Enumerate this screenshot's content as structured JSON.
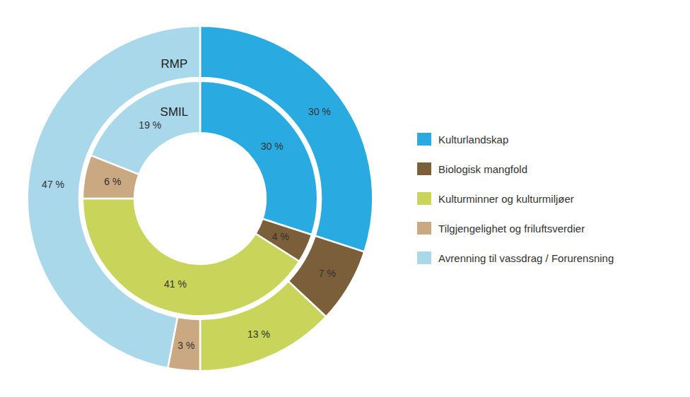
{
  "chart_data": {
    "type": "donut",
    "categories": [
      "Kulturlandskap",
      "Biologisk mangfold",
      "Kulturminner og kulturmiljøer",
      "Tilgjengelighet og friluftsverdier",
      "Avrenning til vassdrag / Forurensning"
    ],
    "colors": [
      "#29ABE2",
      "#7B5E3A",
      "#C8D45A",
      "#C9A882",
      "#A8D8EA"
    ],
    "series": [
      {
        "name": "RMP",
        "values": [
          30,
          7,
          13,
          3,
          47
        ],
        "value_labels": [
          "30 %",
          "7 %",
          "13 %",
          "3 %",
          "47 %"
        ]
      },
      {
        "name": "SMIL",
        "values": [
          30,
          4,
          41,
          6,
          19
        ],
        "value_labels": [
          "30 %",
          "4 %",
          "41 %",
          "6 %",
          "19 %"
        ]
      }
    ],
    "data_labels": true,
    "legend": "right"
  }
}
